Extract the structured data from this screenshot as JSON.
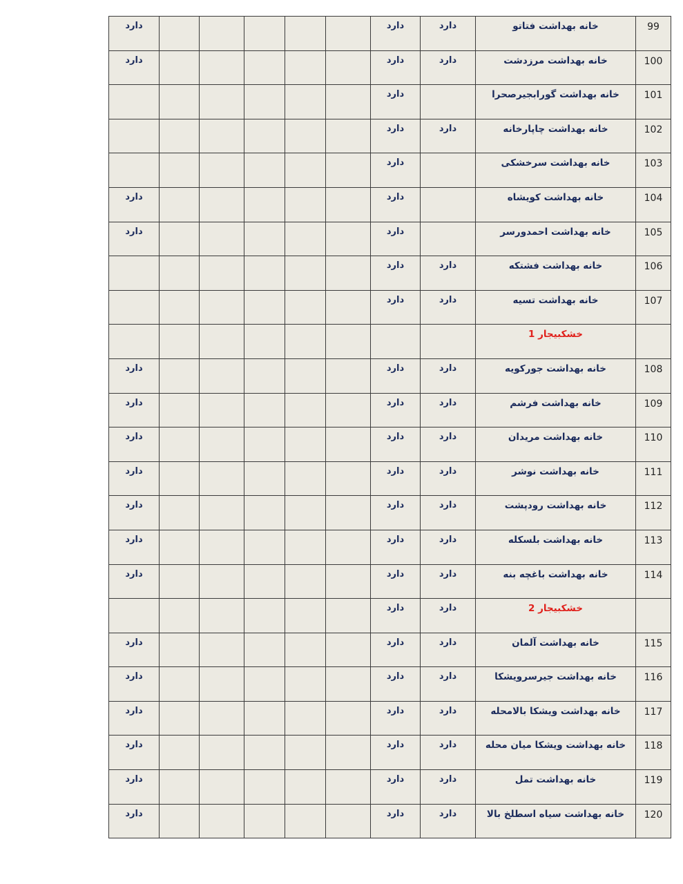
{
  "colors": {
    "text": "#1b2b5c",
    "section": "#e0201b",
    "cell_bg": "#eceae2"
  },
  "rows": [
    {
      "num": "99",
      "name": "خانه بهداشت فتاتو",
      "cells": [
        "دارد",
        "دارد",
        "",
        "",
        "",
        "",
        "",
        "دارد"
      ]
    },
    {
      "num": "100",
      "name": "خانه بهداشت مرزدشت",
      "cells": [
        "دارد",
        "دارد",
        "",
        "",
        "",
        "",
        "",
        "دارد"
      ]
    },
    {
      "num": "101",
      "name": "خانه بهداشت گورابجیرصحرا",
      "cells": [
        "",
        "دارد",
        "",
        "",
        "",
        "",
        "",
        ""
      ]
    },
    {
      "num": "102",
      "name": "خانه بهداشت چاپارخانه",
      "cells": [
        "دارد",
        "دارد",
        "",
        "",
        "",
        "",
        "",
        ""
      ]
    },
    {
      "num": "103",
      "name": "خانه بهداشت سرخشکی",
      "cells": [
        "",
        "دارد",
        "",
        "",
        "",
        "",
        "",
        ""
      ]
    },
    {
      "num": "104",
      "name": "خانه بهداشت کویشاه",
      "cells": [
        "",
        "دارد",
        "",
        "",
        "",
        "",
        "",
        "دارد"
      ]
    },
    {
      "num": "105",
      "name": "خانه بهداشت احمدورسر",
      "cells": [
        "",
        "دارد",
        "",
        "",
        "",
        "",
        "",
        "دارد"
      ]
    },
    {
      "num": "106",
      "name": "خانه بهداشت فشتکه",
      "cells": [
        "دارد",
        "دارد",
        "",
        "",
        "",
        "",
        "",
        ""
      ]
    },
    {
      "num": "107",
      "name": "خانه بهداشت تسیه",
      "cells": [
        "دارد",
        "دارد",
        "",
        "",
        "",
        "",
        "",
        ""
      ]
    },
    {
      "num": "",
      "name": "خشکبیجار 1",
      "section": true,
      "cells": [
        "",
        "",
        "",
        "",
        "",
        "",
        "",
        ""
      ]
    },
    {
      "num": "108",
      "name": "خانه بهداشت جورکویه",
      "cells": [
        "دارد",
        "دارد",
        "",
        "",
        "",
        "",
        "",
        "دارد"
      ]
    },
    {
      "num": "109",
      "name": "خانه بهداشت فرشم",
      "cells": [
        "دارد",
        "دارد",
        "",
        "",
        "",
        "",
        "",
        "دارد"
      ]
    },
    {
      "num": "110",
      "name": "خانه بهداشت مریدان",
      "cells": [
        "دارد",
        "دارد",
        "",
        "",
        "",
        "",
        "",
        "دارد"
      ]
    },
    {
      "num": "111",
      "name": "خانه بهداشت نوشر",
      "cells": [
        "دارد",
        "دارد",
        "",
        "",
        "",
        "",
        "",
        "دارد"
      ]
    },
    {
      "num": "112",
      "name": "خانه بهداشت رودپشت",
      "cells": [
        "دارد",
        "دارد",
        "",
        "",
        "",
        "",
        "",
        "دارد"
      ]
    },
    {
      "num": "113",
      "name": "خانه بهداشت بلسکله",
      "cells": [
        "دارد",
        "دارد",
        "",
        "",
        "",
        "",
        "",
        "دارد"
      ]
    },
    {
      "num": "114",
      "name": "خانه بهداشت باغچه بنه",
      "cells": [
        "دارد",
        "دارد",
        "",
        "",
        "",
        "",
        "",
        "دارد"
      ]
    },
    {
      "num": "",
      "name": "خشکبیجار 2",
      "section": true,
      "cells": [
        "دارد",
        "دارد",
        "",
        "",
        "",
        "",
        "",
        ""
      ]
    },
    {
      "num": "115",
      "name": "خانه بهداشت آلمان",
      "cells": [
        "دارد",
        "دارد",
        "",
        "",
        "",
        "",
        "",
        "دارد"
      ]
    },
    {
      "num": "116",
      "name": "خانه بهداشت جیرسرویشکا",
      "cells": [
        "دارد",
        "دارد",
        "",
        "",
        "",
        "",
        "",
        "دارد"
      ]
    },
    {
      "num": "117",
      "name": "خانه بهداشت ویشکا بالامحله",
      "cells": [
        "دارد",
        "دارد",
        "",
        "",
        "",
        "",
        "",
        "دارد"
      ]
    },
    {
      "num": "118",
      "name": "خانه بهداشت ویشکا میان محله",
      "cells": [
        "دارد",
        "دارد",
        "",
        "",
        "",
        "",
        "",
        "دارد"
      ]
    },
    {
      "num": "119",
      "name": "خانه بهداشت تمل",
      "cells": [
        "دارد",
        "دارد",
        "",
        "",
        "",
        "",
        "",
        "دارد"
      ]
    },
    {
      "num": "120",
      "name": "خانه بهداشت  سیاه اسطلخ بالا",
      "cells": [
        "دارد",
        "دارد",
        "",
        "",
        "",
        "",
        "",
        "دارد"
      ]
    }
  ]
}
